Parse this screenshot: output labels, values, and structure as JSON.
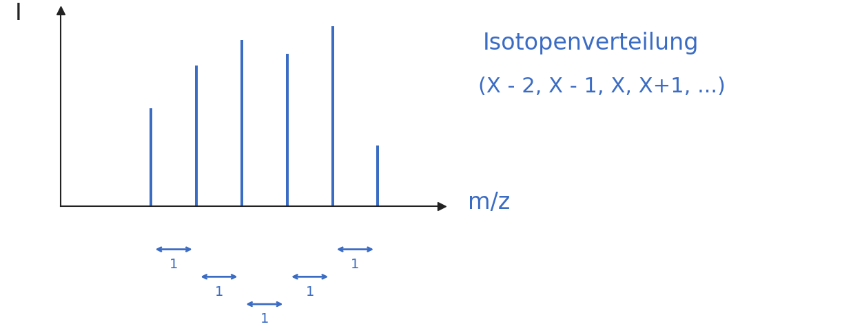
{
  "chart_data": {
    "type": "bar",
    "x": [
      2,
      3,
      4,
      5,
      6,
      7
    ],
    "values": [
      50,
      72,
      85,
      78,
      92,
      31
    ],
    "color": "#3b6cc4",
    "xlim": [
      0,
      8.4
    ],
    "ylim": [
      0,
      100
    ],
    "x_label": "m/z",
    "y_label": "I",
    "annotations": [
      "Isotopenverteilung",
      "(X - 2, X - 1, X, X+1, ...)"
    ],
    "spacings": [
      1,
      1,
      1,
      1,
      1
    ],
    "grid": false,
    "tick_labels": false
  }
}
